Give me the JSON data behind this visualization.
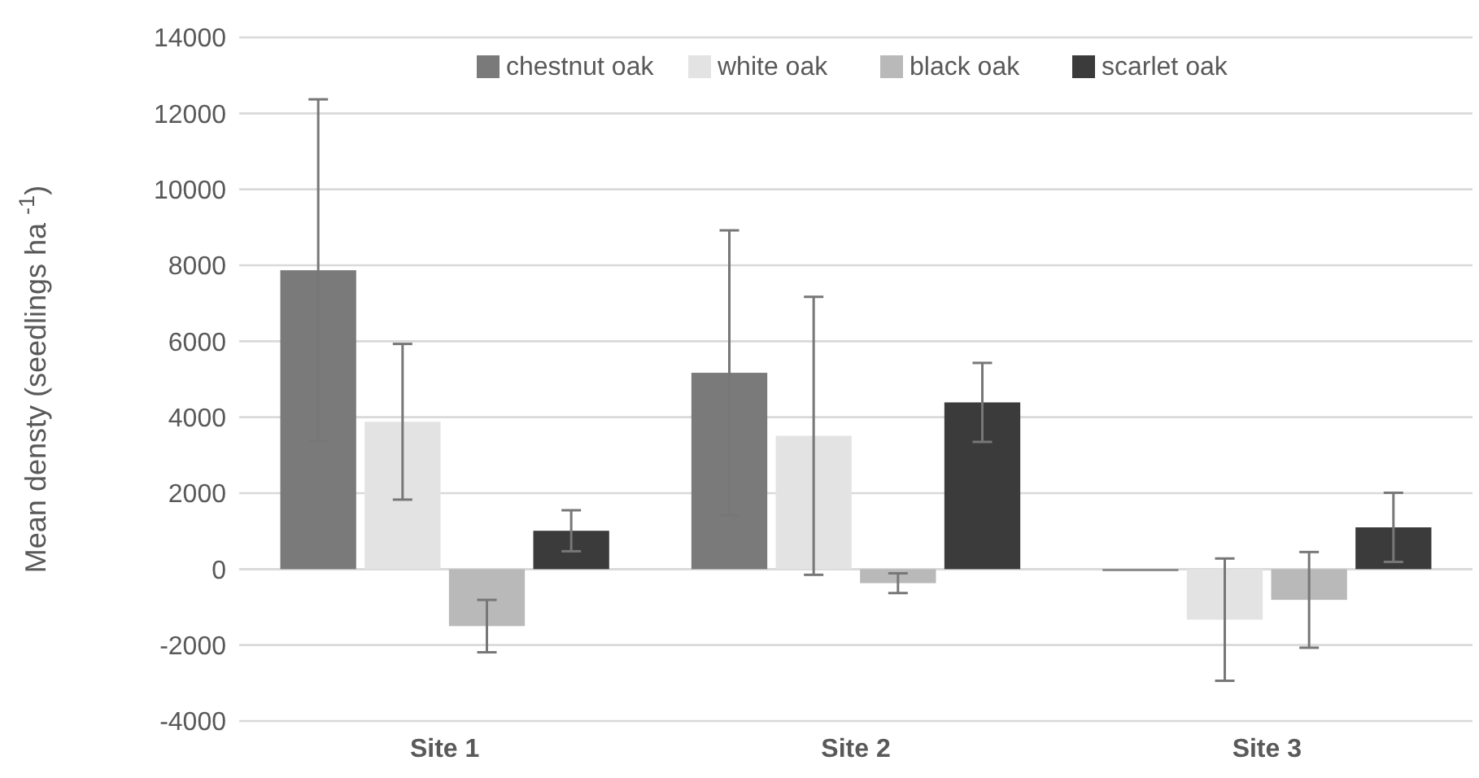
{
  "chart_data": {
    "type": "bar",
    "ylabel": "Mean densty (seedlings  ha $^{-1}$)",
    "categories": [
      "Site 1",
      "Site 2",
      "Site 3"
    ],
    "series": [
      {
        "name": "chestnut oak",
        "color": "#7a7a7a",
        "values": [
          7870,
          5170,
          -50
        ],
        "errors": [
          4500,
          3750,
          null
        ]
      },
      {
        "name": "white oak",
        "color": "#e3e3e3",
        "values": [
          3880,
          3510,
          -1330
        ],
        "errors": [
          2050,
          3660,
          1610
        ]
      },
      {
        "name": "black oak",
        "color": "#b9b9b9",
        "values": [
          -1500,
          -370,
          -810
        ],
        "errors": [
          690,
          260,
          1260
        ]
      },
      {
        "name": "scarlet oak",
        "color": "#3b3b3b",
        "values": [
          1010,
          4390,
          1100
        ],
        "errors": [
          540,
          1040,
          910
        ]
      }
    ],
    "ylim": [
      -4000,
      14000
    ],
    "yticks": [
      -4000,
      -2000,
      0,
      2000,
      4000,
      6000,
      8000,
      10000,
      12000,
      14000
    ],
    "grid": "y",
    "legend": "top"
  }
}
